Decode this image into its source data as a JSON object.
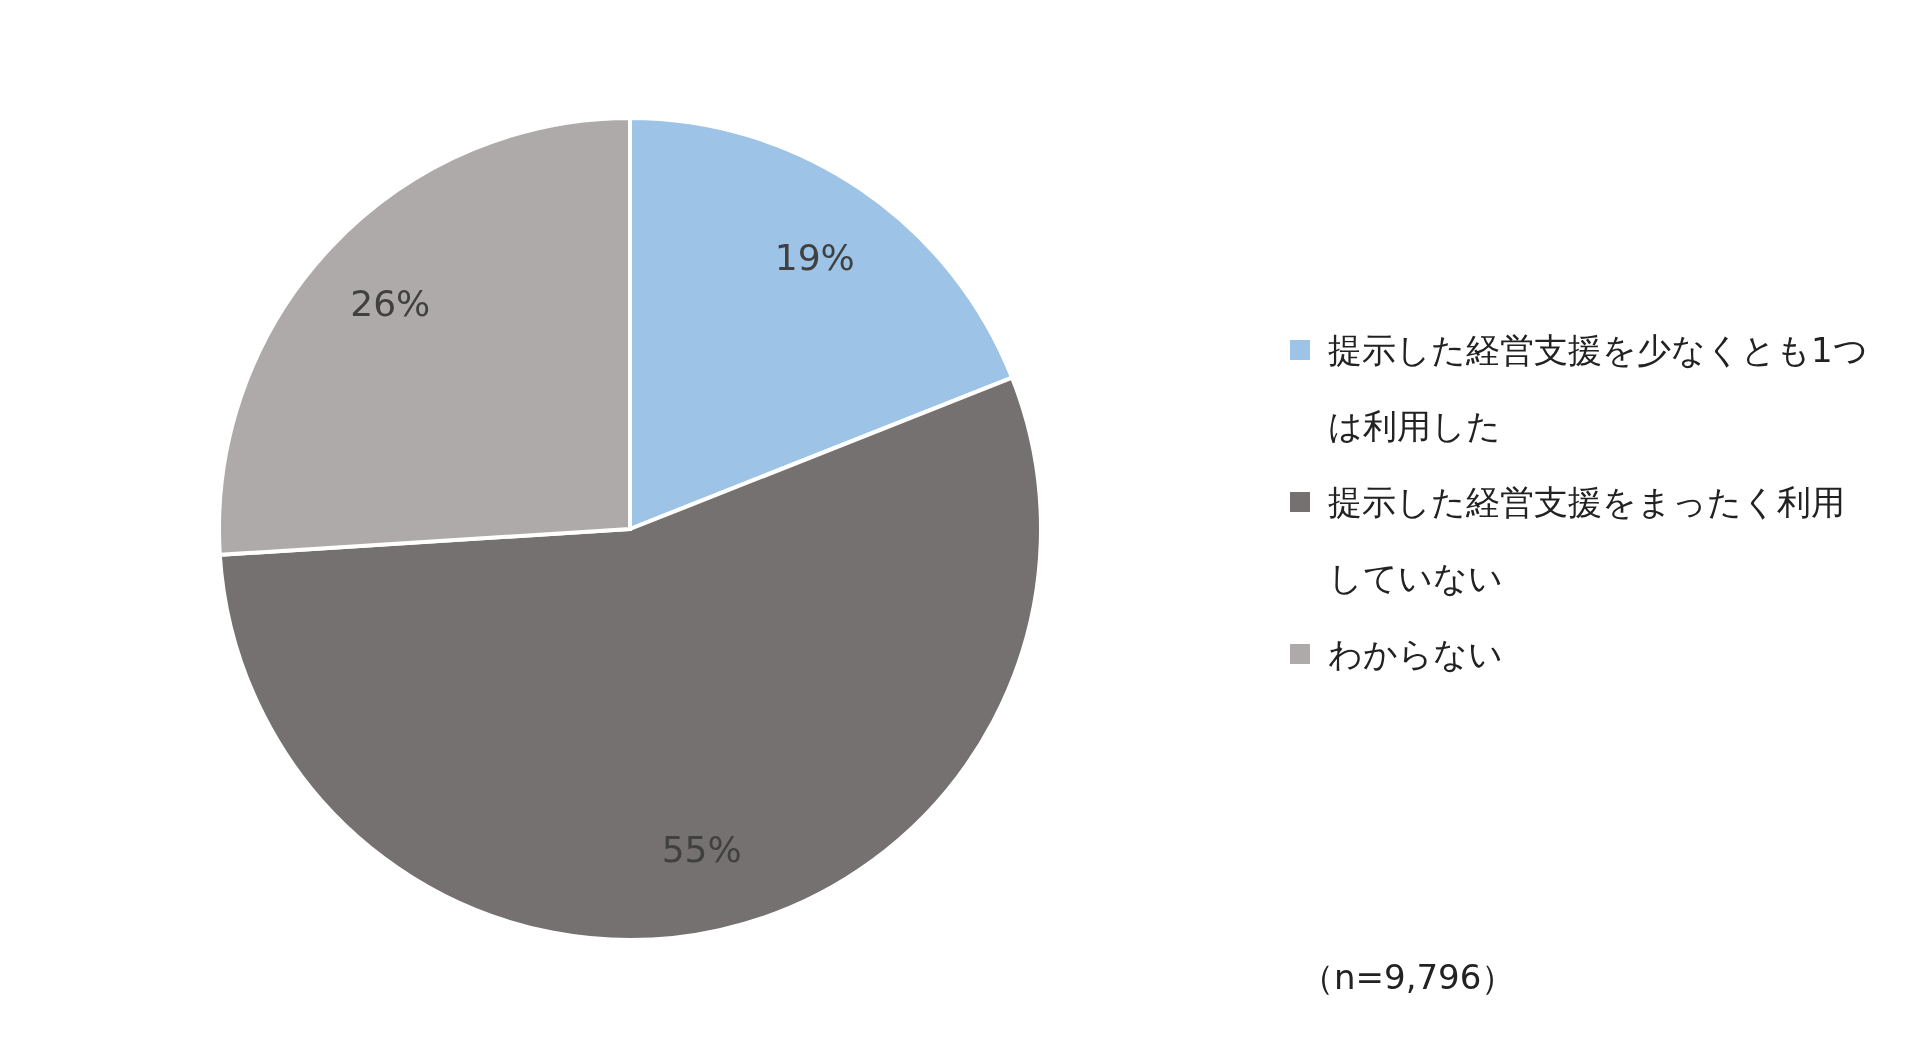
{
  "chart_data": {
    "type": "pie",
    "categories": [
      "提示した経営支援を少なくとも1つは利用した",
      "提示した経営支援をまったく利用していない",
      "わからない"
    ],
    "values": [
      19,
      55,
      26
    ],
    "value_labels": [
      "19%",
      "55%",
      "26%"
    ],
    "colors": [
      "#9dc3e6",
      "#767171",
      "#aeaaaa"
    ],
    "legend": "right",
    "annotations": [
      "（n=9,796）"
    ]
  }
}
